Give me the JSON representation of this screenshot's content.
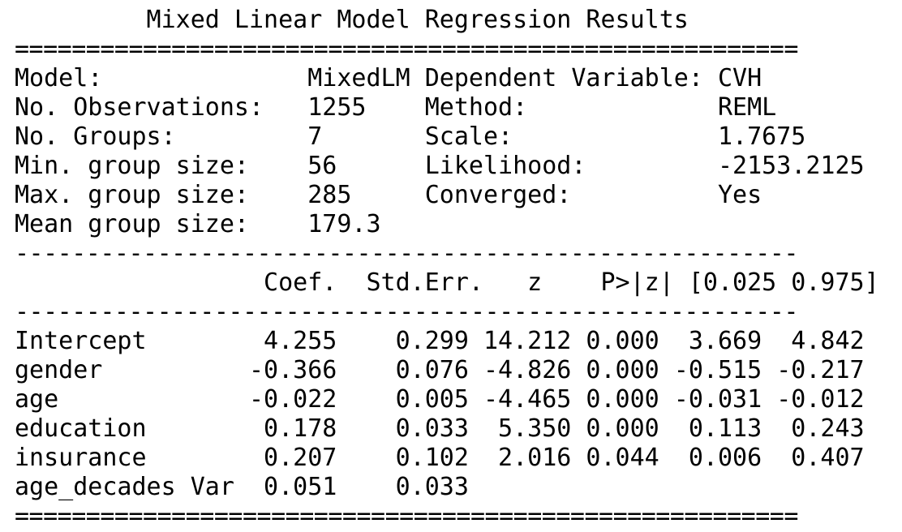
{
  "title": "Mixed Linear Model Regression Results",
  "double_rule": "=======================================================",
  "single_rule": "-------------------------------------------------------",
  "model_info": [
    {
      "label": "Model:",
      "value": "MixedLM",
      "label2": "Dependent Variable:",
      "value2": "CVH"
    },
    {
      "label": "No. Observations:",
      "value": "1255",
      "label2": "Method:",
      "value2": "REML"
    },
    {
      "label": "No. Groups:",
      "value": "7",
      "label2": "Scale:",
      "value2": "1.7675"
    },
    {
      "label": "Min. group size:",
      "value": "56",
      "label2": "Likelihood:",
      "value2": "-2153.2125"
    },
    {
      "label": "Max. group size:",
      "value": "285",
      "label2": "Converged:",
      "value2": "Yes"
    },
    {
      "label": "Mean group size:",
      "value": "179.3",
      "label2": "",
      "value2": ""
    }
  ],
  "coef_header": [
    "",
    "Coef.",
    "Std.Err.",
    "z",
    "P>|z|",
    "[0.025",
    "0.975]"
  ],
  "coef_rows": [
    {
      "name": "Intercept",
      "coef": "4.255",
      "se": "0.299",
      "z": "14.212",
      "p": "0.000",
      "lo": "3.669",
      "hi": "4.842"
    },
    {
      "name": "gender",
      "coef": "-0.366",
      "se": "0.076",
      "z": "-4.826",
      "p": "0.000",
      "lo": "-0.515",
      "hi": "-0.217"
    },
    {
      "name": "age",
      "coef": "-0.022",
      "se": "0.005",
      "z": "-4.465",
      "p": "0.000",
      "lo": "-0.031",
      "hi": "-0.012"
    },
    {
      "name": "education",
      "coef": "0.178",
      "se": "0.033",
      "z": "5.350",
      "p": "0.000",
      "lo": "0.113",
      "hi": "0.243"
    },
    {
      "name": "insurance",
      "coef": "0.207",
      "se": "0.102",
      "z": "2.016",
      "p": "0.044",
      "lo": "0.006",
      "hi": "0.407"
    },
    {
      "name": "age_decades Var",
      "coef": "0.051",
      "se": "0.033",
      "z": "",
      "p": "",
      "lo": "",
      "hi": ""
    }
  ]
}
